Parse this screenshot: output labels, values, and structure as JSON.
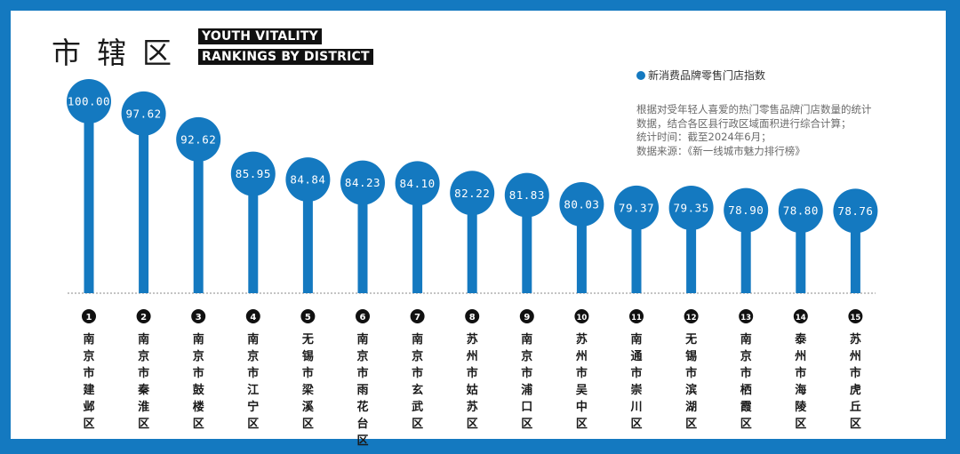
{
  "title_cn": "市辖区",
  "title_en_line1": "YOUTH VITALITY",
  "title_en_line2": "RANKINGS BY DISTRICT",
  "legend_label": "新消费品牌零售门店指数",
  "note": [
    "根据对受年轻人喜爱的热门零售品牌门店数量的统计数据，结合各区县行政区域面积进行综合计算；",
    "统计时间：截至2024年6月；",
    "数据来源：《新一线城市魅力排行榜》"
  ],
  "colors": {
    "accent": "#1479c0",
    "rank_badge": "#111111"
  },
  "chart_data": {
    "type": "bar",
    "categories": [
      "南京市建邺区",
      "南京市秦淮区",
      "南京市鼓楼区",
      "南京市江宁区",
      "无锡市梁溪区",
      "南京市雨花台区",
      "南京市玄武区",
      "苏州市姑苏区",
      "南京市浦口区",
      "苏州市吴中区",
      "南通市崇川区",
      "无锡市滨湖区",
      "南京市栖霞区",
      "泰州市海陵区",
      "苏州市虎丘区"
    ],
    "ranks": [
      "1",
      "2",
      "3",
      "4",
      "5",
      "6",
      "7",
      "8",
      "9",
      "10",
      "11",
      "12",
      "13",
      "14",
      "15"
    ],
    "series": [
      {
        "name": "新消费品牌零售门店指数",
        "values": [
          100.0,
          97.62,
          92.62,
          85.95,
          84.84,
          84.23,
          84.1,
          82.22,
          81.83,
          80.03,
          79.37,
          79.35,
          78.9,
          78.8,
          78.76
        ],
        "labels": [
          "100.00",
          "97.62",
          "92.62",
          "85.95",
          "84.84",
          "84.23",
          "84.10",
          "82.22",
          "81.83",
          "80.03",
          "79.37",
          "79.35",
          "78.90",
          "78.80",
          "78.76"
        ]
      }
    ]
  }
}
